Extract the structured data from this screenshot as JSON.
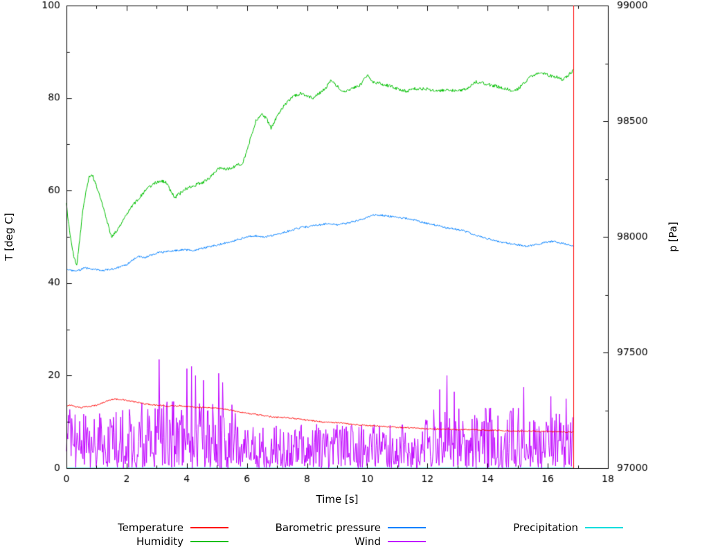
{
  "chart_data": {
    "type": "line",
    "title": "",
    "xlabel": "Time [s]",
    "ylabel_left": "T [deg C]",
    "ylabel_right": "p [Pa]",
    "xlim": [
      0,
      18
    ],
    "ylim_left": [
      0,
      100
    ],
    "ylim_right": [
      97000,
      99000
    ],
    "xticks": [
      0,
      2,
      4,
      6,
      8,
      10,
      12,
      14,
      16,
      18
    ],
    "xticks_minor": [
      1,
      3,
      5,
      7,
      9,
      11,
      13,
      15,
      17
    ],
    "yticks_left": [
      0,
      20,
      40,
      60,
      80,
      100
    ],
    "yticks_left_minor": [
      10,
      30,
      50,
      70,
      90
    ],
    "yticks_right": [
      97000,
      97500,
      98000,
      98500,
      99000
    ],
    "yticks_right_minor": [
      97250,
      97750,
      98250,
      98750
    ],
    "grid": false,
    "legend_position": "below",
    "series": [
      {
        "name": "Temperature",
        "color": "#ff0000",
        "axis": "left",
        "style": "line",
        "noise": 0.15,
        "x": [
          0,
          0.1,
          0.3,
          0.5,
          0.8,
          1.0,
          1.2,
          1.5,
          1.8,
          2.0,
          2.3,
          2.6,
          3.0,
          3.4,
          3.8,
          4.2,
          4.6,
          5.0,
          5.4,
          5.8,
          6.2,
          6.6,
          7.0,
          7.5,
          8.0,
          8.5,
          9.0,
          9.5,
          10.0,
          10.5,
          11.0,
          11.5,
          12.0,
          12.5,
          13.0,
          13.5,
          14.0,
          14.5,
          15.0,
          15.5,
          16.0,
          16.5,
          16.85
        ],
        "values": [
          13.2,
          13.7,
          13.3,
          13.1,
          13.4,
          13.6,
          14.1,
          14.9,
          14.9,
          14.6,
          14.3,
          13.9,
          13.6,
          13.4,
          13.5,
          13.2,
          13.1,
          13.0,
          12.6,
          12.1,
          11.7,
          11.3,
          11.0,
          10.8,
          10.4,
          10.0,
          9.8,
          9.5,
          9.2,
          9.0,
          8.8,
          8.7,
          8.5,
          8.4,
          8.3,
          8.3,
          8.2,
          8.1,
          8.0,
          8.0,
          7.9,
          7.8,
          7.8
        ]
      },
      {
        "name": "Humidity",
        "color": "#00c000",
        "axis": "left",
        "style": "line",
        "noise": 0.35,
        "x": [
          0,
          0.05,
          0.15,
          0.25,
          0.35,
          0.45,
          0.55,
          0.65,
          0.75,
          0.85,
          1.0,
          1.15,
          1.3,
          1.5,
          1.7,
          1.9,
          2.1,
          2.3,
          2.5,
          2.7,
          2.9,
          3.1,
          3.3,
          3.45,
          3.6,
          3.8,
          4.0,
          4.2,
          4.4,
          4.6,
          4.8,
          5.0,
          5.15,
          5.3,
          5.5,
          5.7,
          5.85,
          6.0,
          6.15,
          6.3,
          6.5,
          6.65,
          6.8,
          7.0,
          7.2,
          7.4,
          7.6,
          7.8,
          8.0,
          8.2,
          8.4,
          8.6,
          8.8,
          9.0,
          9.2,
          9.5,
          9.8,
          10.0,
          10.2,
          10.5,
          10.8,
          11.0,
          11.3,
          11.6,
          12.0,
          12.3,
          12.6,
          13.0,
          13.3,
          13.6,
          14.0,
          14.3,
          14.6,
          14.9,
          15.1,
          15.4,
          15.7,
          16.0,
          16.3,
          16.5,
          16.7,
          16.85
        ],
        "values": [
          57,
          54,
          49,
          45.5,
          44,
          50,
          56,
          60,
          63,
          63.5,
          61,
          58,
          54.5,
          50,
          51.5,
          54,
          56,
          57.5,
          59,
          60.5,
          61.5,
          62,
          62,
          60,
          58.5,
          59.5,
          60.5,
          61,
          61.5,
          62,
          63,
          64.5,
          65,
          64.5,
          65,
          65.5,
          66,
          68.5,
          72,
          75,
          76.5,
          75.5,
          73.5,
          76,
          78,
          79.5,
          80.5,
          81,
          80.5,
          80,
          81,
          82,
          84,
          82.5,
          81.5,
          82,
          83,
          85,
          83.5,
          83,
          82.5,
          82,
          81.5,
          82,
          82,
          81.5,
          81.8,
          81.5,
          82,
          83.5,
          83,
          82.5,
          82,
          81.5,
          82.5,
          84.5,
          85.5,
          85,
          84.5,
          84,
          85,
          86
        ]
      },
      {
        "name": "Barometric pressure",
        "color": "#0080ff",
        "axis": "right",
        "style": "line",
        "noise": 4,
        "x": [
          0,
          0.3,
          0.6,
          0.9,
          1.2,
          1.5,
          1.8,
          2.0,
          2.2,
          2.4,
          2.6,
          2.8,
          3.0,
          3.3,
          3.6,
          3.9,
          4.2,
          4.5,
          4.8,
          5.1,
          5.4,
          5.7,
          6.0,
          6.3,
          6.6,
          6.9,
          7.2,
          7.5,
          7.8,
          8.1,
          8.4,
          8.7,
          9.0,
          9.3,
          9.6,
          9.9,
          10.2,
          10.5,
          10.8,
          11.1,
          11.4,
          11.7,
          12.0,
          12.3,
          12.6,
          12.9,
          13.2,
          13.5,
          13.8,
          14.1,
          14.4,
          14.7,
          15.0,
          15.3,
          15.6,
          15.9,
          16.2,
          16.5,
          16.85
        ],
        "values": [
          97860,
          97850,
          97865,
          97860,
          97855,
          97860,
          97870,
          97880,
          97900,
          97915,
          97910,
          97920,
          97930,
          97935,
          97940,
          97945,
          97940,
          97950,
          97958,
          97968,
          97978,
          97988,
          98000,
          98005,
          98000,
          98008,
          98018,
          98030,
          98040,
          98045,
          98052,
          98058,
          98052,
          98058,
          98068,
          98080,
          98095,
          98093,
          98088,
          98083,
          98078,
          98068,
          98058,
          98050,
          98040,
          98034,
          98026,
          98012,
          98000,
          97988,
          97978,
          97972,
          97966,
          97960,
          97966,
          97976,
          97980,
          97972,
          97962
        ]
      },
      {
        "name": "Wind",
        "color": "#c000ff",
        "axis": "left",
        "style": "noise-band",
        "t_start": 0,
        "t_end": 16.85,
        "envelope": {
          "x": [
            0,
            2.2,
            2.5,
            5.5,
            6.0,
            11.6,
            12.0,
            16.85
          ],
          "max": [
            13,
            13,
            14.5,
            14.5,
            9.5,
            9.5,
            13,
            13
          ]
        },
        "spikes": [
          {
            "t": 3.08,
            "v": 23.5
          },
          {
            "t": 4.0,
            "v": 21.5
          },
          {
            "t": 4.15,
            "v": 22
          },
          {
            "t": 4.3,
            "v": 20
          },
          {
            "t": 4.55,
            "v": 19
          },
          {
            "t": 5.05,
            "v": 20.5
          },
          {
            "t": 5.2,
            "v": 18.5
          },
          {
            "t": 12.4,
            "v": 17
          },
          {
            "t": 12.65,
            "v": 20
          },
          {
            "t": 12.9,
            "v": 16.5
          },
          {
            "t": 15.2,
            "v": 17.5
          },
          {
            "t": 16.1,
            "v": 15.5
          },
          {
            "t": 16.6,
            "v": 15
          }
        ]
      },
      {
        "name": "Precipitation",
        "color": "#00dddd",
        "axis": "left",
        "style": "line",
        "noise": 0,
        "x": [
          0,
          16.85
        ],
        "values": [
          0,
          0
        ]
      }
    ],
    "annotations": [
      {
        "type": "vline",
        "x": 16.85,
        "from": 0,
        "to": 100,
        "axis": "left",
        "color": "#ff0000"
      }
    ]
  }
}
